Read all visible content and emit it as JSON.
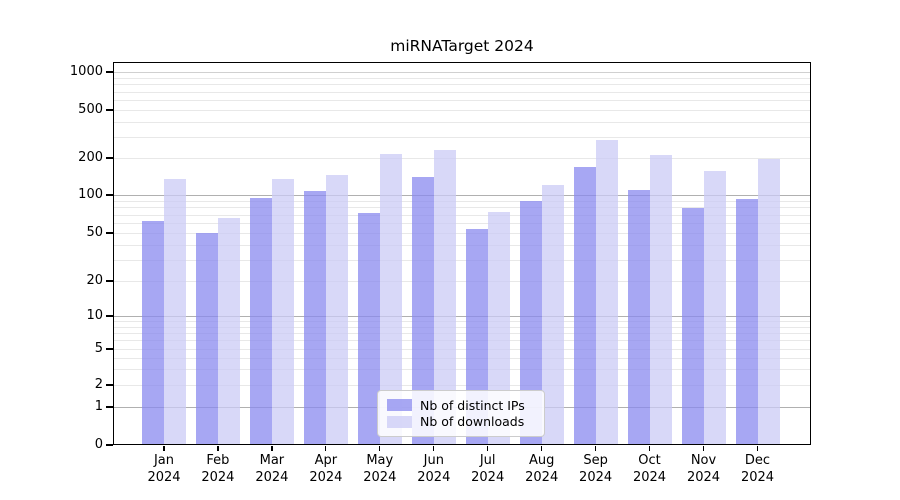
{
  "chart_data": {
    "type": "bar",
    "title": "miRNATarget 2024",
    "categories": [
      "Jan 2024",
      "Feb 2024",
      "Mar 2024",
      "Apr 2024",
      "May 2024",
      "Jun 2024",
      "Jul 2024",
      "Aug 2024",
      "Sep 2024",
      "Oct 2024",
      "Nov 2024",
      "Dec 2024"
    ],
    "series": [
      {
        "name": "Nb of distinct IPs",
        "color": "rgba(137,137,239,0.75)",
        "values": [
          62,
          50,
          95,
          107,
          72,
          140,
          54,
          90,
          170,
          110,
          79,
          93
        ]
      },
      {
        "name": "Nb of downloads",
        "color": "rgba(203,203,246,0.75)",
        "values": [
          135,
          66,
          136,
          145,
          215,
          235,
          74,
          121,
          280,
          212,
          157,
          197
        ]
      }
    ],
    "yscale": "symlog",
    "y_ticks": [
      0,
      1,
      2,
      5,
      10,
      20,
      50,
      100,
      200,
      500,
      1000
    ],
    "ylim": [
      0,
      1200
    ],
    "xlabel": "",
    "ylabel": "",
    "grid": true,
    "legend_position": "lower center",
    "colors": {
      "axis": "#000000",
      "major_grid": "#b0b0b0",
      "minor_grid": "#e8e8e8",
      "top_grid": "#d0d0d0",
      "background": "#ffffff"
    }
  }
}
